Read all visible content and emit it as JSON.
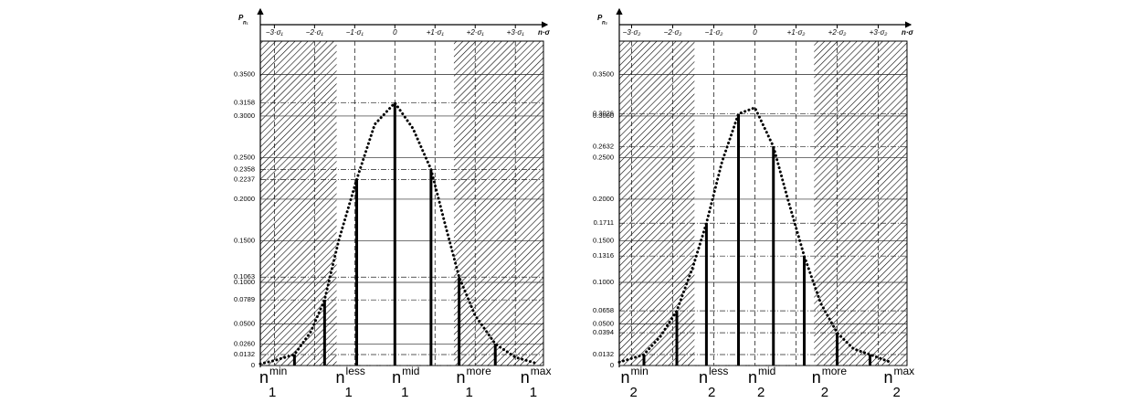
{
  "chart_data": [
    {
      "type": "bar",
      "ylabel": {
        "main": "P",
        "sub": "n₁"
      },
      "xlabel": "n·σ",
      "xlim": [
        -3.35,
        3.7
      ],
      "xticks": [
        {
          "value": -3,
          "label": "−3·σ₁"
        },
        {
          "value": -2,
          "label": "−2·σ₁"
        },
        {
          "value": -1,
          "label": "−1·σ₁"
        },
        0,
        {
          "value": 1,
          "label": "+1·σ₁"
        },
        {
          "value": 2,
          "label": "+2·σ₁"
        },
        {
          "value": 3,
          "label": "+3·σ₁"
        }
      ],
      "ylim": [
        0,
        0.39
      ],
      "yticks": [
        0,
        0.0132,
        {
          "value": 0.026,
          "label": "0.0260"
        },
        {
          "value": 0.05,
          "label": "0.0500"
        },
        0.0789,
        {
          "value": 0.1,
          "label": "0.1000"
        },
        0.1063,
        {
          "value": 0.15,
          "label": "0.1500"
        },
        {
          "value": 0.2,
          "label": "0.2000"
        },
        0.2237,
        0.2358,
        {
          "value": 0.25,
          "label": "0.2500"
        },
        {
          "value": 0.3,
          "label": "0.3000"
        },
        0.3158,
        {
          "value": 0.35,
          "label": "0.3500"
        }
      ],
      "grid": true,
      "shaded_ranges": [
        [
          -3.35,
          -1.45
        ],
        [
          1.47,
          3.7
        ]
      ],
      "color": "#000000",
      "x": [
        -2.5,
        -1.75,
        -0.95,
        0,
        0.9,
        1.6,
        2.5
      ],
      "values": [
        0.0132,
        0.0789,
        0.2237,
        0.3158,
        0.2358,
        0.1063,
        0.026
      ],
      "curve": {
        "x": [
          -3.35,
          -3,
          -2.5,
          -2.1,
          -1.75,
          -1.4,
          -0.95,
          -0.5,
          0,
          0.45,
          0.9,
          1.25,
          1.6,
          2,
          2.5,
          3,
          3.5
        ],
        "values": [
          0.002,
          0.006,
          0.0132,
          0.04,
          0.0789,
          0.15,
          0.2237,
          0.29,
          0.3158,
          0.285,
          0.2358,
          0.17,
          0.1063,
          0.06,
          0.026,
          0.01,
          0.003
        ]
      },
      "bar_labels": [
        {
          "main": "n",
          "sub": "1",
          "sup": "min"
        },
        {
          "main": "n",
          "sub": "1",
          "sup": "less"
        },
        {
          "main": "n",
          "sub": "1",
          "sup": "mid"
        },
        {
          "main": "n",
          "sub": "1",
          "sup": "more"
        },
        {
          "main": "n",
          "sub": "1",
          "sup": "max"
        }
      ]
    },
    {
      "type": "bar",
      "ylabel": {
        "main": "P",
        "sub": "n₂"
      },
      "xlabel": "n·σ",
      "xlim": [
        -3.3,
        3.7
      ],
      "xticks": [
        {
          "value": -3,
          "label": "−3·σ₂"
        },
        {
          "value": -2,
          "label": "−2·σ₂"
        },
        {
          "value": -1,
          "label": "−1·σ₂"
        },
        0,
        {
          "value": 1,
          "label": "+1·σ₂"
        },
        {
          "value": 2,
          "label": "+2·σ₂"
        },
        {
          "value": 3,
          "label": "+3·σ₂"
        }
      ],
      "ylim": [
        0,
        0.39
      ],
      "yticks": [
        0,
        0.0132,
        0.0394,
        {
          "value": 0.05,
          "label": "0.0500"
        },
        0.0658,
        {
          "value": 0.1,
          "label": "0.1000"
        },
        0.1316,
        {
          "value": 0.15,
          "label": "0.1500"
        },
        0.1711,
        {
          "value": 0.2,
          "label": "0.2000"
        },
        {
          "value": 0.25,
          "label": "0.2500"
        },
        0.2632,
        {
          "value": 0.3,
          "label": "0.3000"
        },
        0.3026,
        {
          "value": 0.35,
          "label": "0.3500"
        }
      ],
      "grid": true,
      "shaded_ranges": [
        [
          -3.3,
          -1.47
        ],
        [
          1.44,
          3.7
        ]
      ],
      "color": "#000000",
      "x": [
        -2.7,
        -1.9,
        -1.18,
        -0.4,
        0.45,
        1.2,
        2.0,
        2.8
      ],
      "values": [
        0.0132,
        0.0658,
        0.1711,
        0.3026,
        0.2632,
        0.1316,
        0.0394,
        0.0132
      ],
      "curve": {
        "x": [
          -3.3,
          -2.7,
          -2.3,
          -1.9,
          -1.5,
          -1.18,
          -0.8,
          -0.4,
          0,
          0.45,
          0.8,
          1.2,
          1.6,
          2.0,
          2.4,
          2.8,
          3.3
        ],
        "values": [
          0.004,
          0.0132,
          0.035,
          0.0658,
          0.12,
          0.1711,
          0.245,
          0.3026,
          0.31,
          0.2632,
          0.2,
          0.1316,
          0.075,
          0.0394,
          0.02,
          0.0132,
          0.004
        ]
      },
      "bar_labels": [
        {
          "main": "n",
          "sub": "2",
          "sup": "min"
        },
        {
          "main": "n",
          "sub": "2",
          "sup": "less"
        },
        {
          "main": "n",
          "sub": "2",
          "sup": "mid"
        },
        {
          "main": "n",
          "sub": "2",
          "sup": "more"
        },
        {
          "main": "n",
          "sub": "2",
          "sup": "max"
        }
      ]
    }
  ]
}
